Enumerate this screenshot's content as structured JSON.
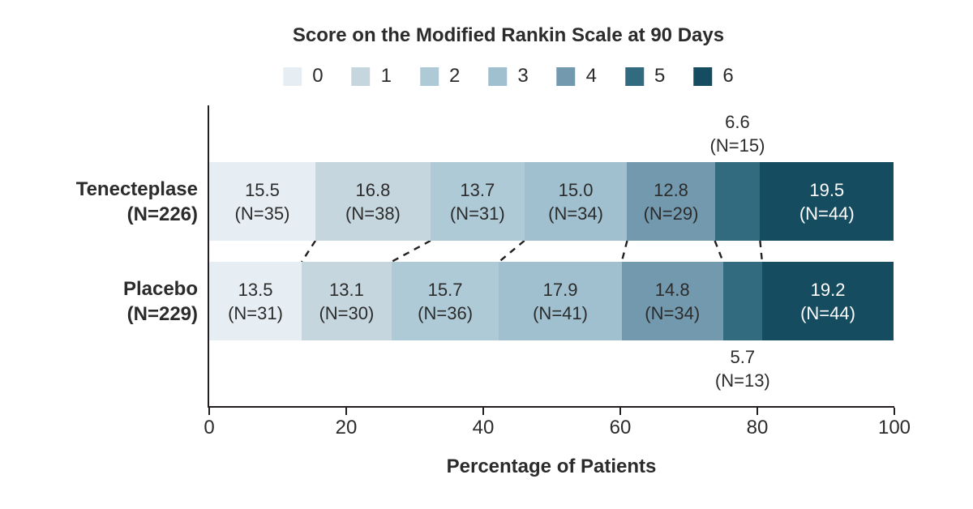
{
  "title": "Score on the Modified Rankin Scale at 90 Days",
  "xlabel": "Percentage of Patients",
  "chart_data": {
    "type": "bar",
    "variant": "horizontal-stacked",
    "title": "Score on the Modified Rankin Scale at 90 Days",
    "xlabel": "Percentage of Patients",
    "xlim": [
      0,
      100
    ],
    "x_ticks": [
      "0",
      "20",
      "40",
      "60",
      "80",
      "100"
    ],
    "legend_labels": [
      "0",
      "1",
      "2",
      "3",
      "4",
      "5",
      "6"
    ],
    "colors": [
      "#e6eef4",
      "#c5d6df",
      "#afcad7",
      "#a1c0cf",
      "#7399ae",
      "#326a80",
      "#164c60"
    ],
    "axis_color": "#231f20",
    "label_color_dark": "#2b2b2b",
    "rows": [
      {
        "group": "Tenecteplase",
        "group_n": "(N=226)",
        "segments": [
          {
            "score": "0",
            "pct": 15.5,
            "pct_label": "15.5",
            "n_label": "(N=35)",
            "label_position": "inside"
          },
          {
            "score": "1",
            "pct": 16.8,
            "pct_label": "16.8",
            "n_label": "(N=38)",
            "label_position": "inside"
          },
          {
            "score": "2",
            "pct": 13.7,
            "pct_label": "13.7",
            "n_label": "(N=31)",
            "label_position": "inside"
          },
          {
            "score": "3",
            "pct": 15.0,
            "pct_label": "15.0",
            "n_label": "(N=34)",
            "label_position": "inside"
          },
          {
            "score": "4",
            "pct": 12.8,
            "pct_label": "12.8",
            "n_label": "(N=29)",
            "label_position": "inside"
          },
          {
            "score": "5",
            "pct": 6.6,
            "pct_label": "6.6",
            "n_label": "(N=15)",
            "label_position": "above"
          },
          {
            "score": "6",
            "pct": 19.5,
            "pct_label": "19.5",
            "n_label": "(N=44)",
            "label_position": "inside",
            "label_color": "#ffffff"
          }
        ]
      },
      {
        "group": "Placebo",
        "group_n": "(N=229)",
        "segments": [
          {
            "score": "0",
            "pct": 13.5,
            "pct_label": "13.5",
            "n_label": "(N=31)",
            "label_position": "inside"
          },
          {
            "score": "1",
            "pct": 13.1,
            "pct_label": "13.1",
            "n_label": "(N=30)",
            "label_position": "inside"
          },
          {
            "score": "2",
            "pct": 15.7,
            "pct_label": "15.7",
            "n_label": "(N=36)",
            "label_position": "inside"
          },
          {
            "score": "3",
            "pct": 17.9,
            "pct_label": "17.9",
            "n_label": "(N=41)",
            "label_position": "inside"
          },
          {
            "score": "4",
            "pct": 14.8,
            "pct_label": "14.8",
            "n_label": "(N=34)",
            "label_position": "inside"
          },
          {
            "score": "5",
            "pct": 5.7,
            "pct_label": "5.7",
            "n_label": "(N=13)",
            "label_position": "below"
          },
          {
            "score": "6",
            "pct": 19.2,
            "pct_label": "19.2",
            "n_label": "(N=44)",
            "label_position": "inside",
            "label_color": "#ffffff"
          }
        ]
      }
    ]
  }
}
